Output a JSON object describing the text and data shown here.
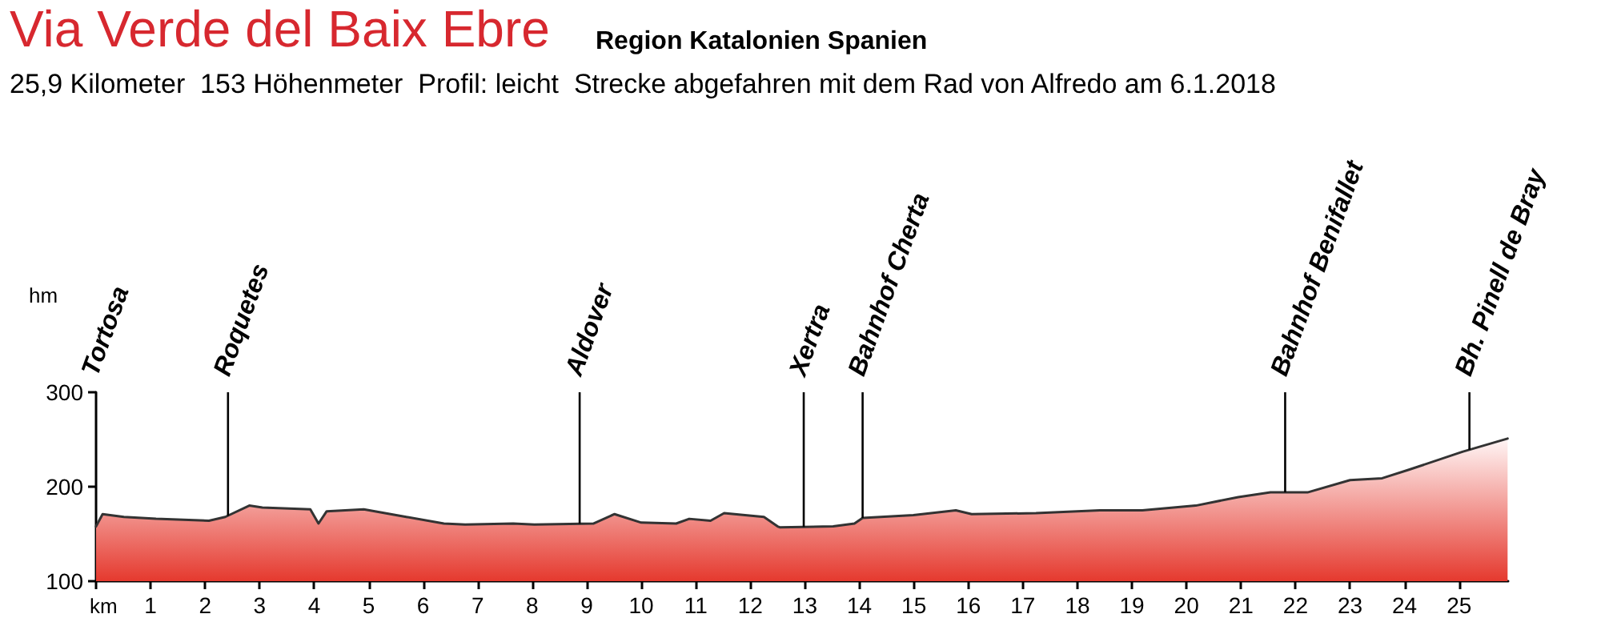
{
  "chart_data": {
    "type": "area",
    "title": "Via Verde del Baix Ebre",
    "subtitle": "Region Katalonien Spanien",
    "annotations": [
      "25,9 Kilometer  153 Höhenmeter  Profil: leicht  Strecke abgefahren mit dem Rad von Alfredo am 6.1.2018",
      "Tortosa"
    ],
    "xlabel": "km",
    "ylabel": "hm",
    "x": [
      0,
      0.12,
      0.51,
      1.1,
      2.07,
      2.37,
      2.81,
      3.05,
      3.93,
      4.08,
      4.23,
      4.91,
      5.69,
      6.38,
      6.77,
      7.65,
      8.04,
      9.12,
      9.51,
      10.0,
      10.64,
      10.88,
      11.27,
      11.52,
      12.25,
      12.5,
      12.54,
      13.52,
      13.91,
      14.06,
      14.99,
      15.77,
      16.06,
      17.24,
      18.41,
      19.19,
      20.17,
      20.95,
      21.54,
      22.22,
      23.0,
      23.59,
      24.08,
      25.06,
      25.89
    ],
    "series": [
      {
        "color": "#e5392e",
        "values": [
          158,
          171,
          168,
          166,
          164,
          168,
          180,
          178,
          176,
          161,
          174,
          176,
          168,
          161,
          160,
          161,
          160,
          161,
          171,
          162,
          161,
          166,
          164,
          172,
          168,
          158,
          157,
          158,
          161,
          167,
          170,
          175,
          171,
          172,
          175,
          175,
          180,
          189,
          194,
          194,
          207,
          209,
          218,
          237,
          251
        ]
      }
    ],
    "xlim": [
      0,
      25.9
    ],
    "ylim": [
      100,
      300
    ],
    "xticks": [
      {
        "value": 0,
        "label": null
      },
      1,
      2,
      3,
      4,
      5,
      6,
      7,
      8,
      9,
      10,
      11,
      12,
      13,
      14,
      15,
      16,
      17,
      18,
      19,
      20,
      21,
      22,
      23,
      24,
      25
    ],
    "yticks": [
      100,
      200,
      300
    ],
    "ref_lines": [
      {
        "axis": "x",
        "value": 2.42,
        "label": "Roquetes",
        "color": "#000000"
      },
      {
        "axis": "x",
        "value": 8.87,
        "label": "Aldover",
        "color": "#000000"
      },
      {
        "axis": "x",
        "value": 12.98,
        "label": "Xertra",
        "color": "#000000"
      },
      {
        "axis": "x",
        "value": 14.06,
        "label": "Bahnhof Cherta",
        "color": "#000000"
      },
      {
        "axis": "x",
        "value": 21.81,
        "label": "Bahnhof Benifallet",
        "color": "#000000"
      },
      {
        "axis": "x",
        "value": 25.19,
        "label": "Bh. Pinell de Bray",
        "color": "#000000"
      }
    ],
    "grid": false,
    "marker": "none",
    "line_style": "solid"
  }
}
